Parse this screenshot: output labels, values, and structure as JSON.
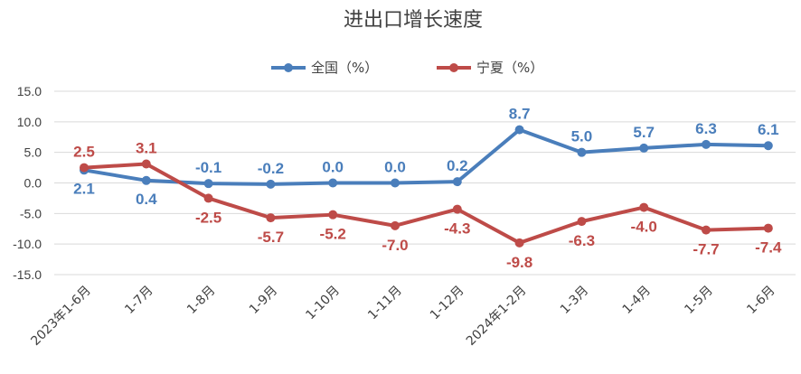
{
  "chart_data": {
    "type": "line",
    "title": "进出口增长速度",
    "categories": [
      "2023年1-6月",
      "1-7月",
      "1-8月",
      "1-9月",
      "1-10月",
      "1-11月",
      "1-12月",
      "2024年1-2月",
      "1-3月",
      "1-4月",
      "1-5月",
      "1-6月"
    ],
    "series": [
      {
        "name": "全国（%）",
        "color": "#4a7ebb",
        "values": [
          2.1,
          0.4,
          -0.1,
          -0.2,
          0.0,
          0.0,
          0.2,
          8.7,
          5.0,
          5.7,
          6.3,
          6.1
        ],
        "labels": [
          "2.1",
          "0.4",
          "-0.1",
          "-0.2",
          "0.0",
          "0.0",
          "0.2",
          "8.7",
          "5.0",
          "5.7",
          "6.3",
          "6.1"
        ]
      },
      {
        "name": "宁夏（%）",
        "color": "#be4b48",
        "values": [
          2.5,
          3.1,
          -2.5,
          -5.7,
          -5.2,
          -7.0,
          -4.3,
          -9.8,
          -6.3,
          -4.0,
          -7.7,
          -7.4
        ],
        "labels": [
          "2.5",
          "3.1",
          "-2.5",
          "-5.7",
          "-5.2",
          "-7.0",
          "-4.3",
          "-9.8",
          "-6.3",
          "-4.0",
          "-7.7",
          "-7.4"
        ]
      }
    ],
    "yticks": [
      "15.0",
      "10.0",
      "5.0",
      "0.0",
      "-5.0",
      "-10.0",
      "-15.0"
    ],
    "ylim": [
      -15,
      15
    ],
    "legend_position": "top",
    "grid": true
  }
}
